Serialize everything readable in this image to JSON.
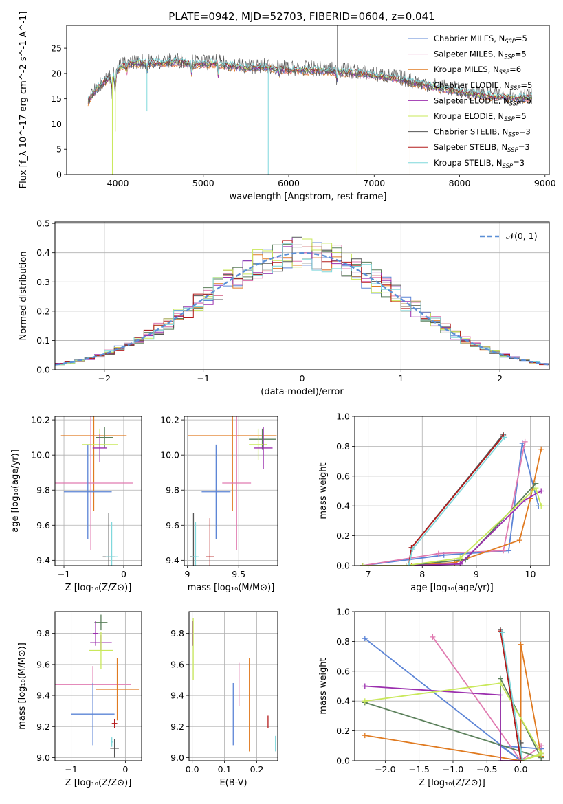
{
  "title": "PLATE=0942, MJD=52703, FIBERID=0604, z=0.041",
  "colors": {
    "chabrier_miles": "#5b84d6",
    "salpeter_miles": "#e07ab0",
    "kroupa_miles": "#e07a20",
    "chabrier_elodie": "#5a7f5a",
    "salpeter_elodie": "#9b2fae",
    "kroupa_elodie": "#c9e85a",
    "chabrier_stelib": "#555555",
    "salpeter_stelib": "#b41b1b",
    "kroupa_stelib": "#7fd8dc",
    "grid": "#b0b0b0",
    "normal": "#5b8fd6"
  },
  "chart_data": [
    {
      "type": "line",
      "name": "spectrum",
      "xlabel": "wavelength [Angstrom, rest frame]",
      "ylabel": "Flux [f_λ 10^-17 erg cm^-2 s^-1 A^-1]",
      "xlim": [
        3400,
        9050
      ],
      "ylim": [
        0,
        29.5
      ],
      "xticks": [
        4000,
        5000,
        6000,
        7000,
        8000,
        9000
      ],
      "yticks": [
        0,
        5,
        10,
        15,
        20,
        25
      ],
      "grid": false,
      "legend_position": "top-right",
      "legend": [
        {
          "label": "Chabrier MILES, N",
          "sub": "SSP",
          "tail": "=5",
          "color_key": "chabrier_miles"
        },
        {
          "label": "Salpeter MILES, N",
          "sub": "SSP",
          "tail": "=5",
          "color_key": "salpeter_miles"
        },
        {
          "label": "Kroupa MILES, N",
          "sub": "SSP",
          "tail": "=6",
          "color_key": "kroupa_miles"
        },
        {
          "label": "Chabrier ELODIE, N",
          "sub": "SSP",
          "tail": "=5",
          "color_key": "chabrier_elodie"
        },
        {
          "label": "Salpeter ELODIE, N",
          "sub": "SSP",
          "tail": "=5",
          "color_key": "salpeter_elodie"
        },
        {
          "label": "Kroupa ELODIE, N",
          "sub": "SSP",
          "tail": "=5",
          "color_key": "kroupa_elodie"
        },
        {
          "label": "Chabrier STELIB, N",
          "sub": "SSP",
          "tail": "=3",
          "color_key": "chabrier_stelib"
        },
        {
          "label": "Salpeter STELIB, N",
          "sub": "SSP",
          "tail": "=3",
          "color_key": "salpeter_stelib"
        },
        {
          "label": "Kroupa STELIB, N",
          "sub": "SSP",
          "tail": "=3",
          "color_key": "kroupa_stelib"
        }
      ],
      "continuum": {
        "x": [
          3650,
          3750,
          3850,
          3950,
          4050,
          4150,
          4300,
          4500,
          4700,
          4900,
          5100,
          5300,
          5500,
          5700,
          5900,
          6100,
          6300,
          6500,
          6700,
          6900,
          7100,
          7300,
          7500,
          7700,
          7900,
          8100,
          8300,
          8500,
          8700,
          8850
        ],
        "y": [
          14.5,
          17.0,
          18.5,
          19.5,
          21.5,
          22.0,
          22.0,
          22.0,
          22.3,
          21.8,
          22.0,
          21.5,
          21.0,
          21.2,
          20.8,
          20.6,
          20.6,
          20.4,
          20.2,
          19.8,
          19.3,
          18.8,
          18.0,
          17.3,
          16.7,
          16.0,
          15.6,
          15.3,
          15.1,
          15.2
        ]
      },
      "spikes": [
        {
          "x": 3935,
          "y": 0,
          "color_key": "kroupa_elodie"
        },
        {
          "x": 3970,
          "y": 8.5,
          "color_key": "kroupa_elodie"
        },
        {
          "x": 4340,
          "y": 12.5,
          "color_key": "kroupa_stelib"
        },
        {
          "x": 5760,
          "y": 0,
          "color_key": "kroupa_stelib"
        },
        {
          "x": 6800,
          "y": 0,
          "color_key": "kroupa_elodie"
        },
        {
          "x": 7420,
          "y": 0,
          "color_key": "kroupa_miles"
        },
        {
          "x": 6570,
          "y": 29.5,
          "color_key": "chabrier_stelib"
        }
      ]
    },
    {
      "type": "step",
      "name": "residual-histogram",
      "xlabel": "(data-model)/error",
      "ylabel": "Normed distribution",
      "xlim": [
        -2.5,
        2.5
      ],
      "ylim": [
        0,
        0.505
      ],
      "xticks": [
        -2,
        -1,
        0,
        1,
        2
      ],
      "yticks": [
        0.0,
        0.1,
        0.2,
        0.3,
        0.4,
        0.5
      ],
      "grid": true,
      "legend_position": "top-right",
      "legend": [
        {
          "label": "𝒩(0, 1)",
          "color_key": "normal"
        }
      ],
      "bin_width": 0.1
    },
    {
      "type": "errorbar",
      "name": "age-vs-Z",
      "xlabel": "Z [log₁₀(Z/Z⊙)]",
      "ylabel": "age  [log₁₀(age/yr)]",
      "xlim": [
        -1.15,
        0.3
      ],
      "ylim": [
        9.37,
        10.22
      ],
      "xticks": [
        -1,
        0
      ],
      "yticks": [
        9.4,
        9.6,
        9.8,
        10.0,
        10.2
      ],
      "grid": true,
      "points": [
        {
          "x": -0.5,
          "xerr": 0.55,
          "y": 10.11,
          "yerr": 0.43,
          "color_key": "kroupa_miles"
        },
        {
          "x": -0.32,
          "xerr": 0.14,
          "y": 10.1,
          "yerr": 0.06,
          "color_key": "chabrier_elodie"
        },
        {
          "x": -0.4,
          "xerr": 0.3,
          "y": 10.06,
          "yerr": 0.09,
          "color_key": "kroupa_elodie"
        },
        {
          "x": -0.4,
          "xerr": 0.12,
          "y": 10.04,
          "yerr": 0.08,
          "color_key": "salpeter_elodie"
        },
        {
          "x": -0.55,
          "xerr": 0.7,
          "y": 9.84,
          "yerr": 0.38,
          "color_key": "salpeter_miles"
        },
        {
          "x": -0.6,
          "xerr": 0.4,
          "y": 9.79,
          "yerr": 0.27,
          "color_key": "chabrier_miles"
        },
        {
          "x": -0.25,
          "xerr": 0.1,
          "y": 9.42,
          "yerr": 0.25,
          "color_key": "chabrier_stelib"
        },
        {
          "x": -0.2,
          "xerr": 0.1,
          "y": 9.42,
          "yerr": 0.2,
          "color_key": "kroupa_stelib"
        }
      ]
    },
    {
      "type": "errorbar",
      "name": "age-vs-mass",
      "xlabel": "mass [log₁₀(M/M⊙)]",
      "ylabel": "",
      "xlim": [
        8.97,
        9.88
      ],
      "ylim": [
        9.37,
        10.22
      ],
      "xticks": [
        9.0,
        9.5
      ],
      "yticks": [
        9.4,
        9.6,
        9.8,
        10.0,
        10.2
      ],
      "grid": true,
      "points": [
        {
          "x": 9.44,
          "xerr": 0.43,
          "y": 10.11,
          "yerr": 0.43,
          "color_key": "kroupa_miles"
        },
        {
          "x": 9.73,
          "xerr": 0.13,
          "y": 10.09,
          "yerr": 0.06,
          "color_key": "chabrier_elodie"
        },
        {
          "x": 9.69,
          "xerr": 0.09,
          "y": 10.06,
          "yerr": 0.09,
          "color_key": "kroupa_elodie"
        },
        {
          "x": 9.74,
          "xerr": 0.09,
          "y": 10.04,
          "yerr": 0.12,
          "color_key": "salpeter_elodie"
        },
        {
          "x": 9.48,
          "xerr": 0.14,
          "y": 9.84,
          "yerr": 0.38,
          "color_key": "salpeter_miles"
        },
        {
          "x": 9.28,
          "xerr": 0.14,
          "y": 9.79,
          "yerr": 0.27,
          "color_key": "chabrier_miles"
        },
        {
          "x": 9.22,
          "xerr": 0.04,
          "y": 9.42,
          "yerr": 0.22,
          "color_key": "salpeter_stelib"
        },
        {
          "x": 9.06,
          "xerr": 0.03,
          "y": 9.42,
          "yerr": 0.25,
          "color_key": "chabrier_stelib"
        },
        {
          "x": 9.08,
          "xerr": 0.03,
          "y": 9.42,
          "yerr": 0.2,
          "color_key": "kroupa_stelib"
        }
      ]
    },
    {
      "type": "line",
      "name": "mass-weight-vs-age",
      "xlabel": "age  [log₁₀(age/yr)]",
      "ylabel": "mass weight",
      "xlim": [
        6.75,
        10.35
      ],
      "ylim": [
        0,
        1.0
      ],
      "xticks": [
        7,
        8,
        9,
        10
      ],
      "yticks": [
        0.0,
        0.2,
        0.4,
        0.6,
        0.8,
        1.0
      ],
      "grid": true,
      "series": [
        {
          "color_key": "chabrier_miles",
          "x": [
            6.9,
            8.4,
            9.6,
            9.85,
            10.15
          ],
          "y": [
            0.0,
            0.07,
            0.1,
            0.82,
            0.4
          ]
        },
        {
          "color_key": "salpeter_miles",
          "x": [
            6.9,
            8.3,
            9.5,
            9.9
          ],
          "y": [
            0.0,
            0.08,
            0.1,
            0.83
          ]
        },
        {
          "color_key": "kroupa_miles",
          "x": [
            6.9,
            7.8,
            8.6,
            9.8,
            10.0,
            10.2
          ],
          "y": [
            0.0,
            0.0,
            0.02,
            0.17,
            0.45,
            0.78
          ]
        },
        {
          "color_key": "chabrier_elodie",
          "x": [
            6.9,
            7.7,
            8.8,
            10.1
          ],
          "y": [
            0.0,
            0.0,
            0.04,
            0.55
          ]
        },
        {
          "color_key": "salpeter_elodie",
          "x": [
            6.9,
            7.7,
            8.7,
            9.9,
            10.2
          ],
          "y": [
            0.0,
            0.0,
            0.01,
            0.44,
            0.5
          ]
        },
        {
          "color_key": "kroupa_elodie",
          "x": [
            6.9,
            7.7,
            8.7,
            10.1,
            10.2
          ],
          "y": [
            0.0,
            0.0,
            0.05,
            0.52,
            0.4
          ]
        },
        {
          "color_key": "chabrier_stelib",
          "x": [
            7.75,
            7.8,
            9.5
          ],
          "y": [
            0.0,
            0.12,
            0.88
          ]
        },
        {
          "color_key": "salpeter_stelib",
          "x": [
            7.75,
            7.8,
            9.5
          ],
          "y": [
            0.0,
            0.12,
            0.87
          ]
        },
        {
          "color_key": "kroupa_stelib",
          "x": [
            7.75,
            7.82,
            9.52
          ],
          "y": [
            0.0,
            0.11,
            0.86
          ]
        }
      ]
    },
    {
      "type": "errorbar",
      "name": "mass-vs-Z",
      "xlabel": "Z [log₁₀(Z/Z⊙)]",
      "ylabel": "mass [log₁₀(M/M⊙)]",
      "xlim": [
        -1.3,
        0.3
      ],
      "ylim": [
        8.98,
        9.94
      ],
      "xticks": [
        -1,
        0
      ],
      "yticks": [
        9.0,
        9.2,
        9.4,
        9.6,
        9.8
      ],
      "grid": true,
      "points": [
        {
          "x": -0.45,
          "xerr": 0.12,
          "y": 9.87,
          "yerr": 0.05,
          "color_key": "chabrier_elodie"
        },
        {
          "x": -0.55,
          "xerr": 0.05,
          "y": 9.8,
          "yerr": 0.08,
          "color_key": "salpeter_elodie"
        },
        {
          "x": -0.45,
          "xerr": 0.2,
          "y": 9.74,
          "yerr": 0.05,
          "color_key": "salpeter_elodie"
        },
        {
          "x": -0.45,
          "xerr": 0.22,
          "y": 9.69,
          "yerr": 0.12,
          "color_key": "kroupa_elodie"
        },
        {
          "x": -0.6,
          "xerr": 0.7,
          "y": 9.47,
          "yerr": 0.12,
          "color_key": "salpeter_miles"
        },
        {
          "x": -0.15,
          "xerr": 0.4,
          "y": 9.44,
          "yerr": 0.2,
          "color_key": "kroupa_miles"
        },
        {
          "x": -0.6,
          "xerr": 0.4,
          "y": 9.28,
          "yerr": 0.2,
          "color_key": "chabrier_miles"
        },
        {
          "x": -0.2,
          "xerr": 0.05,
          "y": 9.22,
          "yerr": 0.03,
          "color_key": "salpeter_stelib"
        },
        {
          "x": -0.2,
          "xerr": 0.08,
          "y": 9.06,
          "yerr": 0.06,
          "color_key": "chabrier_stelib"
        },
        {
          "x": -0.25,
          "xerr": 0.02,
          "y": 9.1,
          "yerr": 0.03,
          "color_key": "kroupa_stelib"
        }
      ]
    },
    {
      "type": "errorbar",
      "name": "mass-vs-EBV",
      "xlabel": "E(B-V)",
      "ylabel": "",
      "xlim": [
        -0.01,
        0.265
      ],
      "ylim": [
        8.98,
        9.94
      ],
      "xticks": [
        0.0,
        0.1,
        0.2
      ],
      "yticks": [
        9.0,
        9.2,
        9.4,
        9.6,
        9.8
      ],
      "grid": true,
      "points": [
        {
          "x": 0.002,
          "y": 9.8,
          "yerr": 0.08,
          "color_key": "salpeter_elodie"
        },
        {
          "x": 0.003,
          "y": 9.7,
          "yerr": 0.2,
          "color_key": "kroupa_elodie"
        },
        {
          "x": 0.127,
          "y": 9.28,
          "yerr": 0.2,
          "color_key": "chabrier_miles"
        },
        {
          "x": 0.145,
          "y": 9.47,
          "yerr": 0.14,
          "color_key": "salpeter_miles"
        },
        {
          "x": 0.177,
          "y": 9.34,
          "yerr": 0.3,
          "color_key": "kroupa_miles"
        },
        {
          "x": 0.235,
          "y": 9.23,
          "yerr": 0.04,
          "color_key": "salpeter_stelib"
        },
        {
          "x": 0.258,
          "y": 9.09,
          "yerr": 0.05,
          "color_key": "kroupa_stelib"
        }
      ]
    },
    {
      "type": "line",
      "name": "mass-weight-vs-Z",
      "xlabel": "Z [log₁₀(Z/Z⊙)]",
      "ylabel": "mass weight",
      "xlim": [
        -2.45,
        0.42
      ],
      "ylim": [
        0,
        1.0
      ],
      "xticks": [
        -2.0,
        -1.5,
        -1.0,
        -0.5,
        0.0
      ],
      "yticks": [
        0.0,
        0.2,
        0.4,
        0.6,
        0.8,
        1.0
      ],
      "grid": true,
      "series": [
        {
          "color_key": "chabrier_miles",
          "x": [
            -2.3,
            0.0,
            -0.3,
            0.3
          ],
          "y": [
            0.82,
            0.0,
            0.1,
            0.08
          ]
        },
        {
          "color_key": "salpeter_miles",
          "x": [
            -1.3,
            0.0,
            0.3
          ],
          "y": [
            0.83,
            0.0,
            0.1
          ]
        },
        {
          "color_key": "kroupa_miles",
          "x": [
            -2.3,
            0.0,
            0.0,
            0.3
          ],
          "y": [
            0.17,
            0.0,
            0.78,
            0.03
          ]
        },
        {
          "color_key": "chabrier_elodie",
          "x": [
            -2.3,
            0.3,
            -0.3,
            -0.3
          ],
          "y": [
            0.39,
            0.02,
            0.55,
            0.0
          ]
        },
        {
          "color_key": "salpeter_elodie",
          "x": [
            -2.3,
            -0.3,
            -0.3,
            0.0,
            0.3
          ],
          "y": [
            0.5,
            0.44,
            0.0,
            0.0,
            0.05
          ]
        },
        {
          "color_key": "kroupa_elodie",
          "x": [
            -2.3,
            -0.3,
            0.3,
            0.0,
            0.3
          ],
          "y": [
            0.4,
            0.52,
            0.05,
            0.0,
            0.04
          ]
        },
        {
          "color_key": "chabrier_stelib",
          "x": [
            -0.3,
            0.0,
            0.0
          ],
          "y": [
            0.88,
            0.0,
            0.12
          ]
        },
        {
          "color_key": "salpeter_stelib",
          "x": [
            -0.3,
            0.0
          ],
          "y": [
            0.87,
            0.0
          ]
        },
        {
          "color_key": "kroupa_stelib",
          "x": [
            -0.28,
            0.02
          ],
          "y": [
            0.86,
            0.01
          ]
        }
      ]
    }
  ]
}
